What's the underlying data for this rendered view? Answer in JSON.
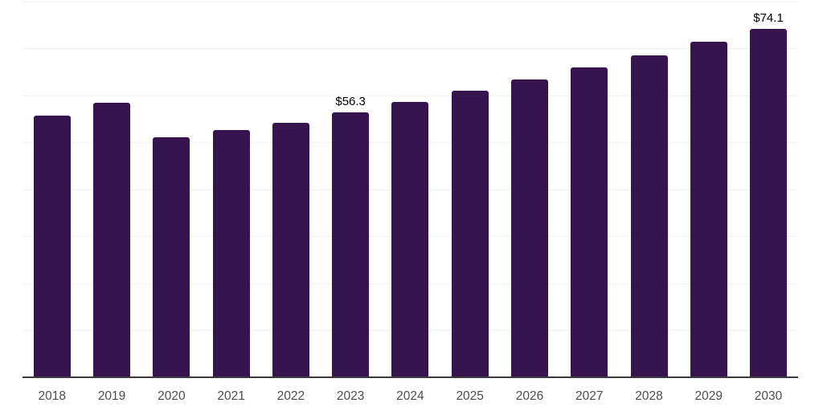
{
  "chart_data": {
    "type": "bar",
    "title": "",
    "xlabel": "",
    "ylabel": "",
    "categories": [
      "2018",
      "2019",
      "2020",
      "2021",
      "2022",
      "2023",
      "2024",
      "2025",
      "2026",
      "2027",
      "2028",
      "2029",
      "2030"
    ],
    "values": [
      55.7,
      58.4,
      51.1,
      52.5,
      54.1,
      56.3,
      58.5,
      61.0,
      63.3,
      65.9,
      68.4,
      71.4,
      74.1
    ],
    "data_labels": {
      "2023": "$56.3",
      "2030": "$74.1"
    },
    "ylim": [
      0,
      80
    ],
    "grid": true,
    "grid_step": 10,
    "y_tick_labels_visible": false,
    "legend_visible": false,
    "colors": {
      "bar": "#351450",
      "gridline": "#f1f1f3",
      "axis_line": "#3a3a3a",
      "tick_label": "#4d4d4d",
      "data_label": "#000000",
      "background": "#ffffff"
    }
  }
}
